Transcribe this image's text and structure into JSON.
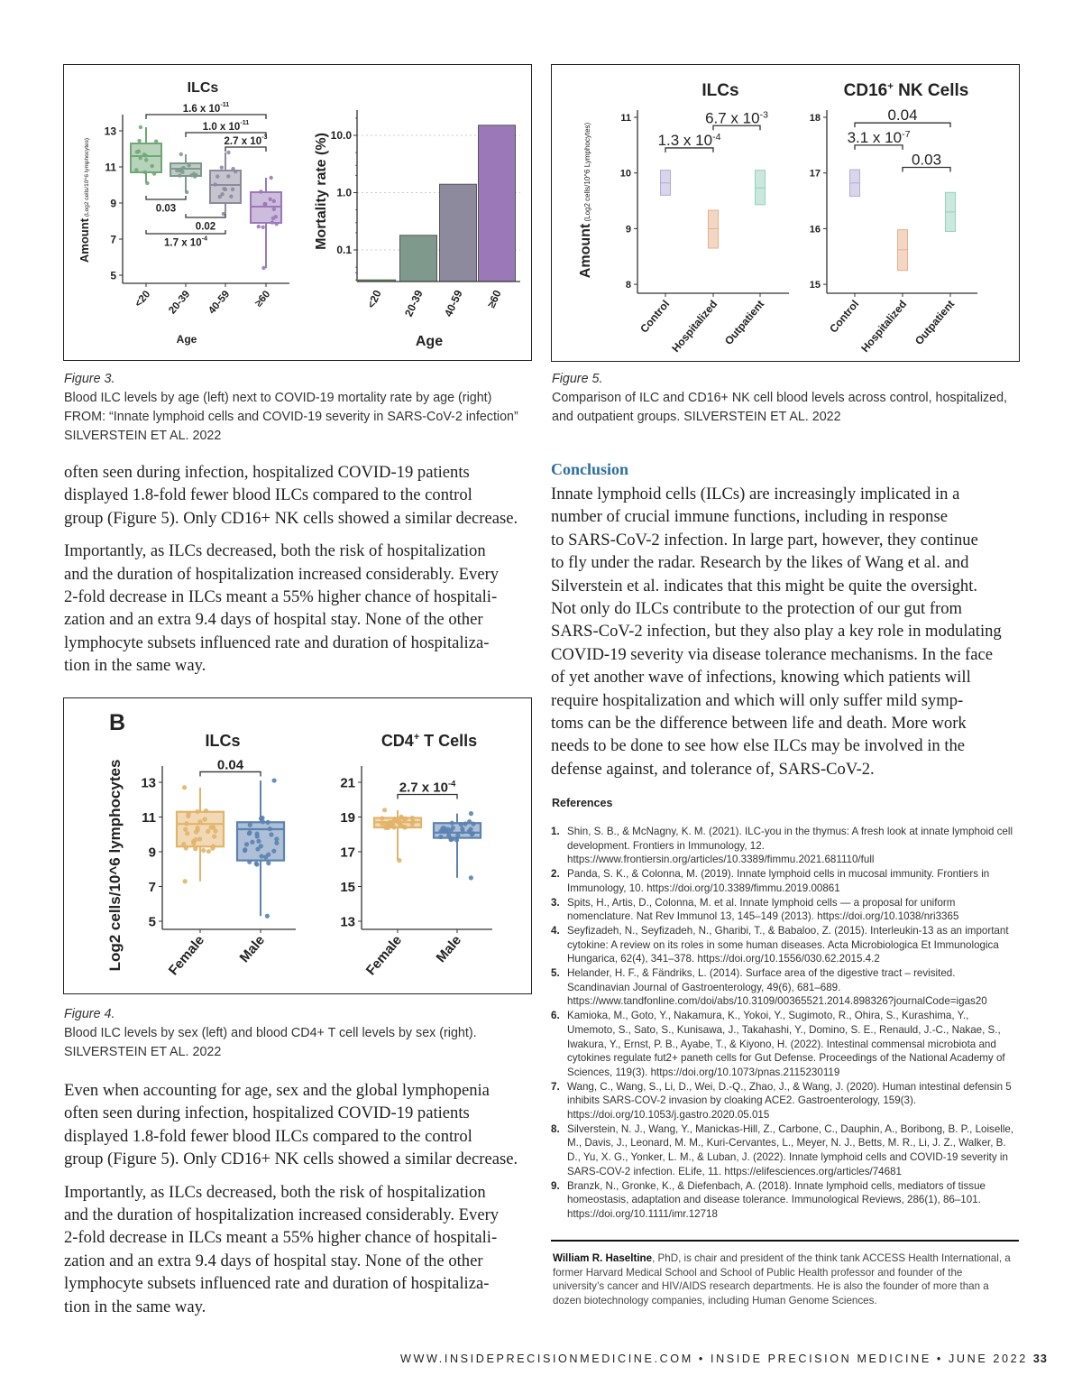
{
  "figure3": {
    "caption_label": "Figure 3.",
    "caption_lines": [
      "Blood ILC levels by age (left) next to COVID-19 mortality rate by age (right)",
      "FROM: “Innate lymphoid cells and COVID-19 severity in SARS-CoV-2 infection”",
      "SILVERSTEIN ET AL. 2022"
    ]
  },
  "figure5": {
    "caption_label": "Figure 5.",
    "caption_lines": [
      "Comparison of ILC and CD16+ NK cell blood levels across control, hospitalized,",
      "and outpatient groups. SILVERSTEIN ET AL. 2022"
    ]
  },
  "figure4": {
    "panel_letter": "B",
    "caption_label": "Figure 4.",
    "caption_lines": [
      "Blood ILC levels by sex (left) and blood CD4+ T cell levels by sex (right).",
      "SILVERSTEIN ET AL. 2022"
    ]
  },
  "left_column": {
    "top_paragraphs": [
      [
        "often seen during infection, hospitalized COVID-19 patients",
        "displayed 1.8-fold fewer blood ILCs compared to the control",
        "group (Figure 5). Only CD16+ NK cells showed a similar decrease."
      ],
      [
        "Importantly, as ILCs decreased, both the risk of hospitalization",
        "and the duration of hospitalization increased considerably. Every",
        "2-fold decrease in ILCs meant a 55% higher chance of hospitali-",
        "zation and an extra 9.4 days of hospital stay. None of the other",
        "lymphocyte subsets influenced rate and duration of hospitaliza-",
        "tion in the same way."
      ]
    ],
    "bottom_paragraphs": [
      [
        "Even when accounting for age, sex and the global lymphopenia",
        "often seen during infection, hospitalized COVID-19 patients",
        "displayed 1.8-fold fewer blood ILCs compared to the control",
        "group (Figure 5). Only CD16+ NK cells showed a similar decrease."
      ],
      [
        "Importantly, as ILCs decreased, both the risk of hospitalization",
        "and the duration of hospitalization increased considerably. Every",
        "2-fold decrease in ILCs meant a 55% higher chance of hospitali-",
        "zation and an extra 9.4 days of hospital stay. None of the other",
        "lymphocyte subsets influenced rate and duration of hospitaliza-",
        "tion in the same way."
      ]
    ]
  },
  "conclusion": {
    "heading": "Conclusion",
    "lines": [
      "Innate lymphoid cells (ILCs) are increasingly implicated in a",
      "number of crucial immune functions, including in response",
      "to SARS-CoV-2 infection. In large part, however, they continue",
      "to fly under the radar. Research by the likes of Wang et al. and",
      "Silverstein et al. indicates that this might be quite the oversight.",
      "Not only do ILCs contribute to the protection of our gut from",
      "SARS-CoV-2 infection, but they also play a key role in modulating",
      "COVID-19 severity via disease tolerance mechanisms. In the face",
      "of yet another wave of infections, knowing which patients will",
      "require hospitalization and which will only suffer mild symp-",
      "toms can be the difference between life and death. More work",
      "needs to be done to see how else ILCs may be involved in the",
      "defense against, and tolerance of, SARS-CoV-2."
    ]
  },
  "references": {
    "heading": "References",
    "items": [
      {
        "num": "1.",
        "text": "Shin, S. B., & McNagny, K. M. (2021). ILC-you in the thymus: A fresh look at innate lymphoid cell development. Frontiers in Immunology, 12. https://www.frontiersin.org/articles/10.3389/fimmu.2021.681110/full"
      },
      {
        "num": "2.",
        "text": "Panda, S. K., & Colonna, M. (2019). Innate lymphoid cells in mucosal immunity. Frontiers in Immunology, 10. https://doi.org/10.3389/fimmu.2019.00861"
      },
      {
        "num": "3.",
        "text": "Spits, H., Artis, D., Colonna, M. et al. Innate lymphoid cells — a proposal for uniform nomenclature. Nat Rev Immunol 13, 145–149 (2013). https://doi.org/10.1038/nri3365"
      },
      {
        "num": "4.",
        "text": "Seyfizadeh, N., Seyfizadeh, N., Gharibi, T., & Babaloo, Z. (2015). Interleukin-13 as an important cytokine: A review on its roles in some human diseases. Acta Microbiologica Et Immunologica Hungarica, 62(4), 341–378. https://doi.org/10.1556/030.62.2015.4.2"
      },
      {
        "num": "5.",
        "text": "Helander, H. F., & Fändriks, L. (2014). Surface area of the digestive tract – revisited. Scandinavian Journal of Gastroenterology, 49(6), 681–689. https://www.tandfonline.com/doi/abs/10.3109/00365521.2014.898326?journalCode=igas20"
      },
      {
        "num": "6.",
        "text": "Kamioka, M., Goto, Y., Nakamura, K., Yokoi, Y., Sugimoto, R., Ohira, S., Kurashima, Y., Umemoto, S., Sato, S., Kunisawa, J., Takahashi, Y., Domino, S. E., Renauld, J.-C., Nakae, S., Iwakura, Y., Ernst, P. B., Ayabe, T., & Kiyono, H. (2022). Intestinal commensal microbiota and cytokines regulate fut2+ paneth cells for Gut Defense. Proceedings of the National Academy of Sciences, 119(3). https://doi.org/10.1073/pnas.2115230119"
      },
      {
        "num": "7.",
        "text": "Wang, C., Wang, S., Li, D., Wei, D.-Q., Zhao, J., & Wang, J. (2020). Human intestinal defensin 5 inhibits SARS-COV-2 invasion by cloaking ACE2. Gastroenterology, 159(3). https://doi.org/10.1053/j.gastro.2020.05.015"
      },
      {
        "num": "8.",
        "text": "Silverstein, N. J., Wang, Y., Manickas-Hill, Z., Carbone, C., Dauphin, A., Boribong, B. P., Loiselle, M., Davis, J., Leonard, M. M., Kuri-Cervantes, L., Meyer, N. J., Betts, M. R., Li, J. Z., Walker, B. D., Yu, X. G., Yonker, L. M., & Luban, J. (2022). Innate lymphoid cells and COVID-19 severity in SARS-COV-2 infection. ELife, 11. https://elifesciences.org/articles/74681"
      },
      {
        "num": "9.",
        "text": "Branzk, N., Gronke, K., & Diefenbach, A. (2018). Innate lymphoid cells, mediators of tissue homeostasis, adaptation and disease tolerance. Immunological Reviews, 286(1), 86–101. https://doi.org/10.1111/imr.12718"
      }
    ]
  },
  "bio": {
    "name": "William R. Haseltine",
    "text": ", PhD, is chair and president of the think tank ACCESS Health International, a former Harvard Medical School and School of Public Health professor and founder of the university’s cancer and HIV/AIDS research departments. He is also the founder of more than a dozen biotechnology companies, including Human Genome Sciences."
  },
  "footer": {
    "text": "WWW.INSIDEPRECISIONMEDICINE.COM • INSIDE PRECISION MEDICINE • JUNE 2022",
    "page_number": "33"
  },
  "chart_data": [
    {
      "id": "fig3-ilcs-age",
      "type": "box",
      "title": "ILCs",
      "ylabel": "Amount",
      "ylabel_sub": "(Log2 cells/10^6 lymphocytes)",
      "xlabel": "Age",
      "ylim": [
        4.5,
        14
      ],
      "yticks": [
        5,
        7,
        9,
        11,
        13
      ],
      "categories": [
        "<20",
        "20-39",
        "40-59",
        "≥60"
      ],
      "boxes": [
        {
          "min": 10.1,
          "q1": 10.7,
          "median": 11.6,
          "q3": 12.3,
          "max": 13.2,
          "color": "#6fa876"
        },
        {
          "min": 9.6,
          "q1": 10.5,
          "median": 10.9,
          "q3": 11.2,
          "max": 11.7,
          "color": "#7f9a8c"
        },
        {
          "min": 8.4,
          "q1": 9.0,
          "median": 10.0,
          "q3": 10.8,
          "max": 11.8,
          "color": "#8d8a9e"
        },
        {
          "min": 5.4,
          "q1": 7.9,
          "median": 8.8,
          "q3": 9.6,
          "max": 10.4,
          "color": "#9b79b8"
        }
      ],
      "brackets": [
        {
          "from": 0,
          "to": 3,
          "y": 13.9,
          "label": "1.6 x 10",
          "exp": "-11",
          "pos": "above"
        },
        {
          "from": 1,
          "to": 3,
          "y": 12.9,
          "label": "1.0 x 10",
          "exp": "-11",
          "pos": "above"
        },
        {
          "from": 2,
          "to": 3,
          "y": 12.1,
          "label": "2.7 x 10",
          "exp": "-3",
          "pos": "above"
        },
        {
          "from": 0,
          "to": 1,
          "y": 9.2,
          "label": "0.03",
          "exp": "",
          "pos": "below"
        },
        {
          "from": 1,
          "to": 2,
          "y": 8.2,
          "label": "0.02",
          "exp": "",
          "pos": "below"
        },
        {
          "from": 0,
          "to": 2,
          "y": 7.3,
          "label": "1.7 x 10",
          "exp": "-4",
          "pos": "below"
        }
      ]
    },
    {
      "id": "fig3-mortality-age",
      "type": "bar",
      "scale": "log",
      "ylabel": "Mortality rate (%)",
      "xlabel": "Age",
      "ylim": [
        0.028,
        25
      ],
      "yticks": [
        0.1,
        1.0,
        10.0
      ],
      "ytick_labels": [
        "0.1",
        "1.0",
        "10.0"
      ],
      "grid": true,
      "categories": [
        "<20",
        "20-39",
        "40-59",
        "≥60"
      ],
      "values": [
        0.03,
        0.18,
        1.4,
        15
      ],
      "colors": [
        "#6fa876",
        "#7f9a8c",
        "#8d8a9e",
        "#9b79b8"
      ]
    },
    {
      "id": "fig5-ilcs",
      "type": "box",
      "title": "ILCs",
      "ylabel": "Amount",
      "ylabel_sub": "(Log2 cells/10^6 Lymphocytes)",
      "ylim": [
        7.9,
        11.1
      ],
      "yticks": [
        8,
        9,
        10,
        11
      ],
      "categories": [
        "Control",
        "Hospitalized",
        "Outpatient"
      ],
      "boxes": [
        {
          "q1": 9.6,
          "median": 9.82,
          "q3": 10.05,
          "color": "#b3acd8"
        },
        {
          "q1": 8.65,
          "median": 9.0,
          "q3": 9.33,
          "color": "#e8b089"
        },
        {
          "q1": 9.43,
          "median": 9.73,
          "q3": 10.05,
          "color": "#95d2bc"
        }
      ],
      "brackets": [
        {
          "from": 0,
          "to": 1,
          "y": 10.45,
          "label": "1.3 x 10",
          "exp": "-4",
          "pos": "above"
        },
        {
          "from": 1,
          "to": 2,
          "y": 10.85,
          "label": "6.7 x 10",
          "exp": "-3",
          "pos": "above"
        }
      ]
    },
    {
      "id": "fig5-cd16-nk",
      "type": "box",
      "title": "CD16",
      "title_sup": "+",
      "title_rest": " NK Cells",
      "ylim": [
        14.9,
        18.1
      ],
      "yticks": [
        15,
        16,
        17,
        18
      ],
      "categories": [
        "Control",
        "Hospitalized",
        "Outpatient"
      ],
      "boxes": [
        {
          "q1": 16.58,
          "median": 16.82,
          "q3": 17.06,
          "color": "#b3acd8"
        },
        {
          "q1": 15.25,
          "median": 15.62,
          "q3": 15.98,
          "color": "#e8b089"
        },
        {
          "q1": 15.95,
          "median": 16.3,
          "q3": 16.65,
          "color": "#95d2bc"
        }
      ],
      "brackets": [
        {
          "from": 0,
          "to": 2,
          "y": 17.9,
          "label": "0.04",
          "exp": "",
          "pos": "above"
        },
        {
          "from": 0,
          "to": 1,
          "y": 17.5,
          "label": "3.1 x 10",
          "exp": "-7",
          "pos": "above"
        },
        {
          "from": 1,
          "to": 2,
          "y": 17.1,
          "label": "0.03",
          "exp": "",
          "pos": "above"
        }
      ]
    },
    {
      "id": "fig4-ilcs-sex",
      "type": "box",
      "title": "ILCs",
      "ylabel": "Log2 cells/10^6 lymphocytes",
      "ylim": [
        4.5,
        14
      ],
      "yticks": [
        5,
        7,
        9,
        11,
        13
      ],
      "categories": [
        "Female",
        "Male"
      ],
      "boxes": [
        {
          "min": 7.3,
          "q1": 9.3,
          "median": 10.6,
          "q3": 11.3,
          "max": 12.7,
          "color": "#e2b46a"
        },
        {
          "min": 5.3,
          "q1": 8.5,
          "median": 10.3,
          "q3": 10.7,
          "max": 13.1,
          "color": "#5b82b0"
        }
      ],
      "brackets": [
        {
          "from": 0,
          "to": 1,
          "y": 13.6,
          "label": "0.04",
          "exp": "",
          "pos": "above"
        }
      ]
    },
    {
      "id": "fig4-cd4-sex",
      "type": "box",
      "title": "CD4",
      "title_sup": "+",
      "title_rest": " T Cells",
      "ylim": [
        12.5,
        22
      ],
      "yticks": [
        13,
        15,
        17,
        19,
        21
      ],
      "categories": [
        "Female",
        "Male"
      ],
      "boxes": [
        {
          "min": 16.5,
          "q1": 18.4,
          "median": 18.7,
          "q3": 18.95,
          "max": 19.4,
          "color": "#e2b46a"
        },
        {
          "min": 15.5,
          "q1": 17.8,
          "median": 18.1,
          "q3": 18.65,
          "max": 19.2,
          "color": "#5b82b0"
        }
      ],
      "brackets": [
        {
          "from": 0,
          "to": 1,
          "y": 20.3,
          "label": "2.7 x 10",
          "exp": "-4",
          "pos": "above"
        }
      ]
    }
  ]
}
